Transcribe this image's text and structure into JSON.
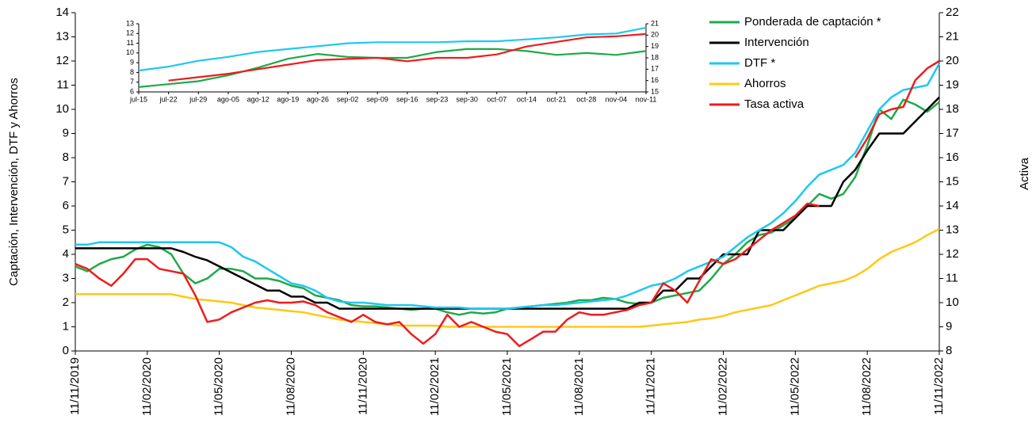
{
  "chart_data": [
    {
      "type": "line",
      "ylabel": "Captación, Intervención,  DTF  y Ahorros",
      "y2label": "Activa",
      "legend": "upper right",
      "categories": [
        "11/11/2019",
        null,
        null,
        null,
        null,
        null,
        "11/02/2020",
        null,
        null,
        null,
        null,
        null,
        "11/05/2020",
        null,
        null,
        null,
        null,
        null,
        "11/08/2020",
        null,
        null,
        null,
        null,
        null,
        "11/11/2020",
        null,
        null,
        null,
        null,
        null,
        "11/02/2021",
        null,
        null,
        null,
        null,
        null,
        "11/05/2021",
        null,
        null,
        null,
        null,
        null,
        "11/08/2021",
        null,
        null,
        null,
        null,
        null,
        "11/11/2021",
        null,
        null,
        null,
        null,
        null,
        "11/02/2022",
        null,
        null,
        null,
        null,
        null,
        "11/05/2022",
        null,
        null,
        null,
        null,
        null,
        "11/08/2022",
        null,
        null,
        null,
        null,
        null,
        "11/11/2022"
      ],
      "ylim": [
        0,
        14
      ],
      "yticks": [
        0,
        1,
        2,
        3,
        4,
        5,
        6,
        7,
        8,
        9,
        10,
        11,
        12,
        13,
        14
      ],
      "y2lim": [
        8,
        22
      ],
      "y2ticks": [
        8,
        9,
        10,
        11,
        12,
        13,
        14,
        15,
        16,
        17,
        18,
        19,
        20,
        21,
        22
      ],
      "series": [
        {
          "name": "Ponderada de captación *",
          "color": "#1fa94a",
          "values": [
            3.5,
            3.3,
            3.6,
            3.8,
            3.9,
            4.2,
            4.4,
            4.3,
            4.0,
            3.2,
            2.8,
            3.0,
            3.4,
            3.4,
            3.3,
            3.0,
            3.0,
            2.9,
            2.7,
            2.6,
            2.3,
            2.2,
            2.1,
            1.9,
            1.85,
            1.85,
            1.8,
            1.75,
            1.7,
            1.75,
            1.75,
            1.6,
            1.5,
            1.6,
            1.55,
            1.6,
            1.75,
            1.8,
            1.85,
            1.9,
            1.95,
            2.0,
            2.1,
            2.1,
            2.2,
            2.15,
            2.0,
            1.95,
            2.0,
            2.2,
            2.3,
            2.4,
            2.5,
            3.0,
            3.6,
            4.0,
            4.5,
            4.8,
            4.9,
            5.2,
            5.5,
            6.0,
            6.5,
            6.3,
            6.5,
            7.2,
            8.5,
            10.0,
            9.6,
            10.4,
            10.2,
            9.9,
            10.3
          ]
        },
        {
          "name": "Intervención",
          "color": "#000000",
          "values": [
            4.25,
            4.25,
            4.25,
            4.25,
            4.25,
            4.25,
            4.25,
            4.25,
            4.25,
            4.1,
            3.9,
            3.75,
            3.5,
            3.25,
            3.0,
            2.75,
            2.5,
            2.5,
            2.25,
            2.25,
            2.0,
            2.0,
            1.75,
            1.75,
            1.75,
            1.75,
            1.75,
            1.75,
            1.75,
            1.75,
            1.75,
            1.75,
            1.75,
            1.75,
            1.75,
            1.75,
            1.75,
            1.75,
            1.75,
            1.75,
            1.75,
            1.75,
            1.75,
            1.75,
            1.75,
            1.75,
            1.75,
            2.0,
            2.0,
            2.5,
            2.5,
            3.0,
            3.0,
            3.5,
            4.0,
            4.0,
            4.0,
            5.0,
            5.0,
            5.0,
            5.5,
            6.0,
            6.0,
            6.0,
            7.0,
            7.5,
            8.3,
            9.0,
            9.0,
            9.0,
            9.5,
            10.0,
            10.5
          ]
        },
        {
          "name": "DTF *",
          "color": "#1ec8f0",
          "values": [
            4.4,
            4.4,
            4.5,
            4.5,
            4.5,
            4.5,
            4.5,
            4.5,
            4.5,
            4.5,
            4.5,
            4.5,
            4.5,
            4.3,
            3.9,
            3.7,
            3.4,
            3.1,
            2.8,
            2.7,
            2.5,
            2.2,
            2.05,
            2.0,
            2.0,
            1.95,
            1.9,
            1.9,
            1.9,
            1.85,
            1.8,
            1.8,
            1.8,
            1.75,
            1.75,
            1.75,
            1.75,
            1.8,
            1.85,
            1.9,
            1.9,
            1.95,
            2.0,
            2.05,
            2.1,
            2.15,
            2.3,
            2.5,
            2.7,
            2.8,
            3.0,
            3.3,
            3.5,
            3.7,
            3.9,
            4.3,
            4.7,
            5.0,
            5.3,
            5.7,
            6.2,
            6.8,
            7.3,
            7.5,
            7.7,
            8.2,
            9.1,
            10.0,
            10.5,
            10.8,
            10.9,
            11.0,
            11.9
          ]
        },
        {
          "name": "Ahorros",
          "color": "#ffc814",
          "values": [
            2.35,
            2.35,
            2.35,
            2.35,
            2.35,
            2.35,
            2.35,
            2.35,
            2.35,
            2.25,
            2.15,
            2.1,
            2.05,
            2.0,
            1.9,
            1.8,
            1.75,
            1.7,
            1.65,
            1.6,
            1.5,
            1.4,
            1.3,
            1.25,
            1.2,
            1.15,
            1.1,
            1.05,
            1.05,
            1.05,
            1.05,
            1.0,
            1.0,
            1.0,
            1.0,
            1.0,
            1.0,
            1.0,
            1.0,
            1.0,
            1.0,
            1.0,
            1.0,
            1.0,
            1.0,
            1.0,
            1.0,
            1.0,
            1.05,
            1.1,
            1.15,
            1.2,
            1.3,
            1.35,
            1.45,
            1.6,
            1.7,
            1.8,
            1.9,
            2.1,
            2.3,
            2.5,
            2.7,
            2.8,
            2.9,
            3.1,
            3.4,
            3.8,
            4.1,
            4.3,
            4.5,
            4.8,
            5.05
          ]
        },
        {
          "name": "Tasa activa",
          "color": "#ee1c1c",
          "axis": "y2",
          "values": [
            11.6,
            11.4,
            11.0,
            10.7,
            11.2,
            11.8,
            11.8,
            11.4,
            11.3,
            11.2,
            10.3,
            9.2,
            9.3,
            9.6,
            9.8,
            10.0,
            10.1,
            10.0,
            10.0,
            10.05,
            9.9,
            9.6,
            9.4,
            9.2,
            9.5,
            9.2,
            9.1,
            9.2,
            8.7,
            8.3,
            8.7,
            9.5,
            9.0,
            9.2,
            9.0,
            8.8,
            8.7,
            8.2,
            8.5,
            8.8,
            8.8,
            9.3,
            9.6,
            9.5,
            9.5,
            9.6,
            9.7,
            9.9,
            10.0,
            10.8,
            10.5,
            10.0,
            10.9,
            11.8,
            11.6,
            11.8,
            12.2,
            12.6,
            13.0,
            13.3,
            13.6,
            14.1,
            14.0,
            null,
            null,
            16.0,
            16.8,
            17.8,
            18.0,
            18.1,
            19.2,
            19.7,
            20.0
          ]
        }
      ]
    },
    {
      "type": "line",
      "categories": [
        "jul-15",
        "jul-22",
        "jul-29",
        "ago-05",
        "ago-12",
        "ago-19",
        "ago-26",
        "sep-02",
        "sep-09",
        "sep-16",
        "sep-23",
        "sep-30",
        "oct-07",
        "oct-14",
        "oct-21",
        "oct-28",
        "nov-04",
        "nov-11"
      ],
      "ylim": [
        6,
        13
      ],
      "yticks": [
        6,
        7,
        8,
        9,
        10,
        11,
        12,
        13
      ],
      "y2lim": [
        15,
        21
      ],
      "y2ticks": [
        15,
        16,
        17,
        18,
        19,
        20,
        21
      ],
      "series": [
        {
          "color": "#1fa94a",
          "values": [
            6.5,
            6.8,
            7.1,
            7.7,
            8.5,
            9.4,
            9.9,
            9.6,
            9.5,
            9.5,
            10.1,
            10.4,
            10.4,
            10.2,
            9.8,
            10.0,
            9.8,
            10.2
          ]
        },
        {
          "color": "#1ec8f0",
          "values": [
            8.2,
            8.6,
            9.2,
            9.6,
            10.1,
            10.4,
            10.7,
            11.0,
            11.1,
            11.1,
            11.1,
            11.2,
            11.2,
            11.4,
            11.6,
            11.9,
            12.0,
            12.6
          ]
        },
        {
          "color": "#ee1c1c",
          "axis": "y2",
          "values": [
            null,
            16.0,
            16.3,
            16.6,
            17.0,
            17.4,
            17.8,
            17.9,
            18.0,
            17.7,
            18.0,
            18.0,
            18.3,
            19.0,
            19.4,
            19.8,
            19.9,
            20.1
          ]
        }
      ]
    }
  ]
}
